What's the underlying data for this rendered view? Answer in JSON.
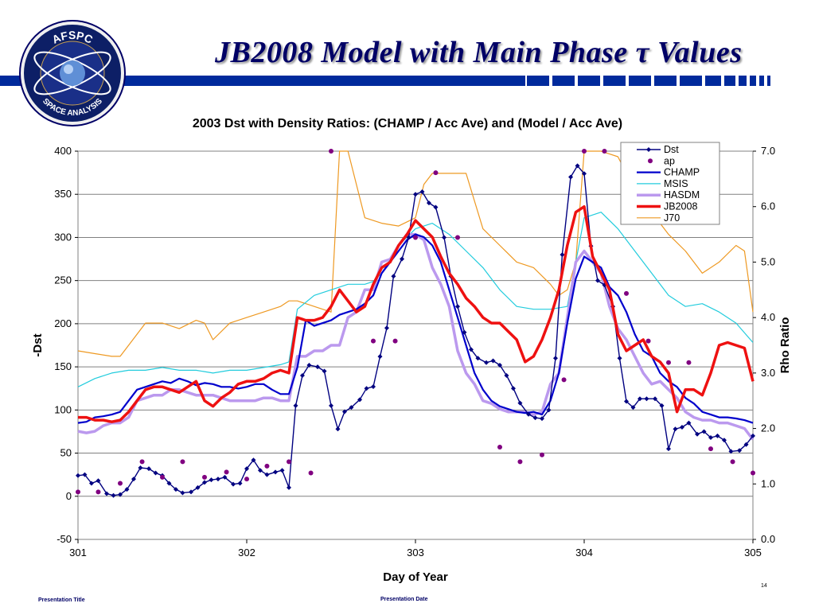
{
  "slide": {
    "title": "JB2008 Model with Main Phase τ Values",
    "logo_top": "AFSPC",
    "logo_bottom": "SPACE ANALYSIS",
    "footer_left": "Presentation Title",
    "footer_mid": "Presentation Date",
    "page_number": "14",
    "colors": {
      "banner": "#002a9c",
      "title": "#000066"
    }
  },
  "chart_data": {
    "type": "line",
    "title": "2003 Dst with Density Ratios: (CHAMP / Acc Ave) and (Model / Acc Ave)",
    "xlabel": "Day of Year",
    "ylabel_left": "-Dst",
    "ylabel_right": "Rho Ratio",
    "xlim": [
      301,
      305
    ],
    "ylim_left": [
      -50,
      400
    ],
    "ylim_right": [
      0,
      7
    ],
    "x_ticks": [
      "301",
      "302",
      "303",
      "304",
      "305"
    ],
    "y_left_ticks": [
      "-50",
      "0",
      "50",
      "100",
      "150",
      "200",
      "250",
      "300",
      "350",
      "400"
    ],
    "y_right_ticks": [
      "0.0",
      "1.0",
      "2.0",
      "3.0",
      "4.0",
      "5.0",
      "6.0",
      "7.0"
    ],
    "legend_position": "top-right",
    "legend": [
      "Dst",
      "ap",
      "CHAMP",
      "MSIS",
      "HASDM",
      "JB2008",
      "J70"
    ],
    "series": [
      {
        "name": "Dst",
        "axis": "left",
        "color": "#000080",
        "marker": "diamond",
        "x": [
          301.0,
          301.04,
          301.08,
          301.12,
          301.17,
          301.21,
          301.25,
          301.29,
          301.33,
          301.37,
          301.42,
          301.46,
          301.5,
          301.54,
          301.58,
          301.62,
          301.67,
          301.71,
          301.75,
          301.79,
          301.83,
          301.87,
          301.92,
          301.96,
          302.0,
          302.04,
          302.08,
          302.12,
          302.17,
          302.21,
          302.25,
          302.29,
          302.33,
          302.37,
          302.42,
          302.46,
          302.5,
          302.54,
          302.58,
          302.62,
          302.67,
          302.71,
          302.75,
          302.79,
          302.83,
          302.87,
          302.92,
          302.96,
          303.0,
          303.04,
          303.08,
          303.12,
          303.17,
          303.21,
          303.25,
          303.29,
          303.33,
          303.37,
          303.42,
          303.46,
          303.5,
          303.54,
          303.58,
          303.62,
          303.67,
          303.71,
          303.75,
          303.79,
          303.83,
          303.87,
          303.92,
          303.96,
          304.0,
          304.04,
          304.08,
          304.12,
          304.17,
          304.21,
          304.25,
          304.29,
          304.33,
          304.37,
          304.42,
          304.46,
          304.5,
          304.54,
          304.58,
          304.62,
          304.67,
          304.71,
          304.75,
          304.79,
          304.83,
          304.87,
          304.92,
          304.96,
          305.0
        ],
        "y": [
          24,
          25,
          15,
          18,
          3,
          1,
          2,
          8,
          20,
          33,
          32,
          27,
          24,
          15,
          8,
          4,
          5,
          10,
          16,
          19,
          20,
          22,
          14,
          15,
          32,
          42,
          30,
          25,
          28,
          30,
          10,
          105,
          140,
          152,
          150,
          145,
          105,
          78,
          98,
          103,
          112,
          125,
          127,
          162,
          195,
          255,
          275,
          300,
          350,
          353,
          340,
          335,
          300,
          255,
          220,
          190,
          170,
          160,
          155,
          157,
          152,
          140,
          125,
          108,
          95,
          91,
          90,
          100,
          160,
          280,
          370,
          383,
          374,
          290,
          250,
          245,
          220,
          160,
          110,
          103,
          113,
          113,
          113,
          105,
          55,
          78,
          80,
          85,
          72,
          75,
          68,
          70,
          65,
          52,
          53,
          60,
          70
        ]
      },
      {
        "name": "ap",
        "axis": "left",
        "color": "#800080",
        "marker": "circle",
        "x": [
          301.0,
          301.12,
          301.25,
          301.38,
          301.5,
          301.62,
          301.75,
          301.88,
          302.0,
          302.12,
          302.25,
          302.38,
          302.5,
          302.75,
          302.88,
          303.0,
          303.12,
          303.25,
          303.5,
          303.62,
          303.75,
          303.88,
          304.0,
          304.12,
          304.25,
          304.38,
          304.5,
          304.62,
          304.75,
          304.88,
          305.0
        ],
        "y": [
          5,
          5,
          15,
          40,
          22,
          40,
          22,
          28,
          20,
          35,
          40,
          27,
          400,
          180,
          180,
          300,
          375,
          300,
          57,
          40,
          48,
          135,
          400,
          400,
          235,
          180,
          155,
          155,
          55,
          40,
          27
        ]
      },
      {
        "name": "CHAMP",
        "axis": "right",
        "color": "#0000cc",
        "x": [
          301.0,
          301.05,
          301.1,
          301.15,
          301.2,
          301.25,
          301.3,
          301.35,
          301.4,
          301.45,
          301.5,
          301.55,
          301.6,
          301.65,
          301.7,
          301.75,
          301.8,
          301.85,
          301.9,
          301.95,
          302.0,
          302.05,
          302.1,
          302.15,
          302.2,
          302.25,
          302.3,
          302.35,
          302.4,
          302.45,
          302.5,
          302.55,
          302.6,
          302.65,
          302.7,
          302.75,
          302.8,
          302.85,
          302.9,
          302.95,
          303.0,
          303.05,
          303.1,
          303.15,
          303.2,
          303.25,
          303.3,
          303.35,
          303.4,
          303.45,
          303.5,
          303.55,
          303.6,
          303.65,
          303.7,
          303.75,
          303.8,
          303.85,
          303.9,
          303.95,
          304.0,
          304.05,
          304.1,
          304.15,
          304.2,
          304.25,
          304.3,
          304.35,
          304.4,
          304.45,
          304.5,
          304.55,
          304.6,
          304.65,
          304.7,
          304.75,
          304.8,
          304.85,
          304.9,
          304.95,
          305.0
        ],
        "y": [
          2.1,
          2.12,
          2.2,
          2.22,
          2.25,
          2.3,
          2.5,
          2.7,
          2.75,
          2.8,
          2.85,
          2.82,
          2.9,
          2.85,
          2.78,
          2.82,
          2.8,
          2.75,
          2.75,
          2.72,
          2.75,
          2.8,
          2.8,
          2.7,
          2.62,
          2.62,
          3.1,
          3.95,
          3.85,
          3.9,
          3.95,
          4.05,
          4.1,
          4.15,
          4.25,
          4.4,
          4.8,
          5.0,
          5.2,
          5.4,
          5.5,
          5.45,
          5.3,
          5.0,
          4.5,
          4.0,
          3.5,
          3.0,
          2.7,
          2.5,
          2.4,
          2.35,
          2.3,
          2.28,
          2.3,
          2.25,
          2.5,
          3.0,
          3.9,
          4.7,
          5.1,
          5.0,
          4.9,
          4.55,
          4.4,
          4.1,
          3.7,
          3.4,
          3.3,
          3.0,
          2.85,
          2.75,
          2.55,
          2.45,
          2.3,
          2.25,
          2.2,
          2.2,
          2.18,
          2.15,
          2.1
        ]
      },
      {
        "name": "MSIS",
        "axis": "right",
        "color": "#22ccdd",
        "x": [
          301.0,
          301.1,
          301.2,
          301.3,
          301.4,
          301.5,
          301.6,
          301.7,
          301.8,
          301.9,
          302.0,
          302.1,
          302.2,
          302.25,
          302.3,
          302.4,
          302.5,
          302.6,
          302.7,
          302.75,
          302.8,
          302.9,
          303.0,
          303.1,
          303.2,
          303.3,
          303.4,
          303.5,
          303.6,
          303.7,
          303.8,
          303.9,
          304.0,
          304.1,
          304.2,
          304.3,
          304.4,
          304.5,
          304.6,
          304.7,
          304.8,
          304.9,
          305.0
        ],
        "y": [
          2.75,
          2.9,
          3.0,
          3.05,
          3.05,
          3.1,
          3.05,
          3.05,
          3.0,
          3.05,
          3.05,
          3.1,
          3.15,
          3.2,
          4.15,
          4.4,
          4.5,
          4.6,
          4.6,
          4.65,
          4.8,
          5.3,
          5.6,
          5.7,
          5.5,
          5.2,
          4.9,
          4.5,
          4.2,
          4.15,
          4.15,
          4.2,
          5.8,
          5.9,
          5.6,
          5.2,
          4.8,
          4.4,
          4.2,
          4.25,
          4.1,
          3.9,
          3.55
        ]
      },
      {
        "name": "HASDM",
        "axis": "right",
        "color": "#bb99ee",
        "x": [
          301.0,
          301.05,
          301.1,
          301.15,
          301.2,
          301.25,
          301.3,
          301.35,
          301.4,
          301.45,
          301.5,
          301.55,
          301.6,
          301.65,
          301.7,
          301.75,
          301.8,
          301.85,
          301.9,
          301.95,
          302.0,
          302.05,
          302.1,
          302.15,
          302.2,
          302.25,
          302.3,
          302.35,
          302.4,
          302.45,
          302.5,
          302.55,
          302.6,
          302.65,
          302.7,
          302.75,
          302.8,
          302.85,
          302.9,
          302.95,
          303.0,
          303.05,
          303.1,
          303.15,
          303.2,
          303.25,
          303.3,
          303.35,
          303.4,
          303.45,
          303.5,
          303.55,
          303.6,
          303.65,
          303.7,
          303.75,
          303.8,
          303.85,
          303.9,
          303.95,
          304.0,
          304.05,
          304.1,
          304.15,
          304.2,
          304.25,
          304.3,
          304.35,
          304.4,
          304.45,
          304.5,
          304.55,
          304.6,
          304.65,
          304.7,
          304.75,
          304.8,
          304.85,
          304.9,
          304.95,
          305.0
        ],
        "y": [
          1.95,
          1.92,
          1.95,
          2.05,
          2.1,
          2.1,
          2.2,
          2.5,
          2.55,
          2.6,
          2.6,
          2.7,
          2.7,
          2.65,
          2.6,
          2.6,
          2.6,
          2.55,
          2.5,
          2.5,
          2.5,
          2.5,
          2.55,
          2.55,
          2.5,
          2.5,
          3.3,
          3.3,
          3.4,
          3.4,
          3.5,
          3.5,
          4.0,
          4.1,
          4.5,
          4.5,
          5.0,
          5.05,
          5.3,
          5.5,
          5.5,
          5.4,
          4.9,
          4.6,
          4.2,
          3.4,
          3.0,
          2.8,
          2.5,
          2.45,
          2.35,
          2.3,
          2.3,
          2.3,
          2.25,
          2.3,
          2.8,
          3.0,
          4.0,
          5.0,
          5.2,
          5.0,
          4.8,
          4.2,
          3.8,
          3.6,
          3.3,
          3.0,
          2.8,
          2.85,
          2.7,
          2.55,
          2.3,
          2.2,
          2.15,
          2.15,
          2.1,
          2.1,
          2.05,
          2.0,
          1.8
        ]
      },
      {
        "name": "JB2008",
        "axis": "right",
        "color": "#ee1111",
        "x": [
          301.0,
          301.05,
          301.1,
          301.15,
          301.2,
          301.25,
          301.3,
          301.35,
          301.4,
          301.45,
          301.5,
          301.55,
          301.6,
          301.65,
          301.7,
          301.75,
          301.8,
          301.85,
          301.9,
          301.95,
          302.0,
          302.05,
          302.1,
          302.15,
          302.2,
          302.25,
          302.3,
          302.35,
          302.4,
          302.45,
          302.5,
          302.55,
          302.6,
          302.65,
          302.7,
          302.75,
          302.8,
          302.85,
          302.9,
          302.95,
          303.0,
          303.05,
          303.1,
          303.15,
          303.2,
          303.25,
          303.3,
          303.35,
          303.4,
          303.45,
          303.5,
          303.55,
          303.6,
          303.65,
          303.7,
          303.75,
          303.8,
          303.85,
          303.9,
          303.95,
          304.0,
          304.05,
          304.1,
          304.15,
          304.2,
          304.25,
          304.3,
          304.35,
          304.4,
          304.45,
          304.5,
          304.55,
          304.6,
          304.65,
          304.7,
          304.75,
          304.8,
          304.85,
          304.9,
          304.95,
          305.0
        ],
        "y": [
          2.2,
          2.2,
          2.15,
          2.15,
          2.12,
          2.15,
          2.3,
          2.5,
          2.7,
          2.75,
          2.75,
          2.7,
          2.65,
          2.75,
          2.85,
          2.5,
          2.4,
          2.55,
          2.65,
          2.8,
          2.85,
          2.85,
          2.9,
          3.0,
          3.05,
          3.0,
          4.0,
          3.95,
          3.95,
          4.0,
          4.2,
          4.5,
          4.3,
          4.1,
          4.2,
          4.6,
          4.9,
          5.0,
          5.3,
          5.5,
          5.75,
          5.6,
          5.45,
          5.1,
          4.8,
          4.6,
          4.35,
          4.2,
          4.0,
          3.9,
          3.9,
          3.75,
          3.6,
          3.2,
          3.3,
          3.6,
          4.0,
          4.5,
          5.3,
          5.9,
          6.0,
          5.1,
          4.8,
          4.5,
          3.7,
          3.4,
          3.5,
          3.6,
          3.3,
          3.2,
          3.0,
          2.3,
          2.7,
          2.7,
          2.6,
          3.0,
          3.5,
          3.55,
          3.5,
          3.45,
          2.85
        ]
      },
      {
        "name": "J70",
        "axis": "right",
        "color": "#ee9922",
        "x": [
          301.0,
          301.1,
          301.2,
          301.25,
          301.3,
          301.4,
          301.5,
          301.6,
          301.7,
          301.75,
          301.8,
          301.9,
          302.0,
          302.1,
          302.2,
          302.25,
          302.3,
          302.4,
          302.5,
          302.55,
          302.6,
          302.7,
          302.8,
          302.9,
          303.0,
          303.05,
          303.1,
          303.2,
          303.3,
          303.4,
          303.5,
          303.6,
          303.7,
          303.8,
          303.85,
          303.9,
          303.95,
          304.0,
          304.1,
          304.2,
          304.3,
          304.4,
          304.5,
          304.6,
          304.7,
          304.8,
          304.9,
          304.95,
          305.0
        ],
        "y": [
          3.4,
          3.35,
          3.3,
          3.3,
          3.5,
          3.9,
          3.9,
          3.8,
          3.95,
          3.9,
          3.6,
          3.9,
          4.0,
          4.1,
          4.2,
          4.3,
          4.3,
          4.2,
          4.1,
          7.0,
          7.0,
          5.8,
          5.7,
          5.65,
          5.8,
          6.4,
          6.6,
          6.6,
          6.6,
          5.6,
          5.3,
          5.0,
          4.9,
          4.6,
          4.4,
          4.5,
          5.0,
          7.0,
          7.0,
          6.9,
          6.3,
          5.9,
          5.5,
          5.2,
          4.8,
          5.0,
          5.3,
          5.2,
          4.1
        ]
      }
    ]
  }
}
